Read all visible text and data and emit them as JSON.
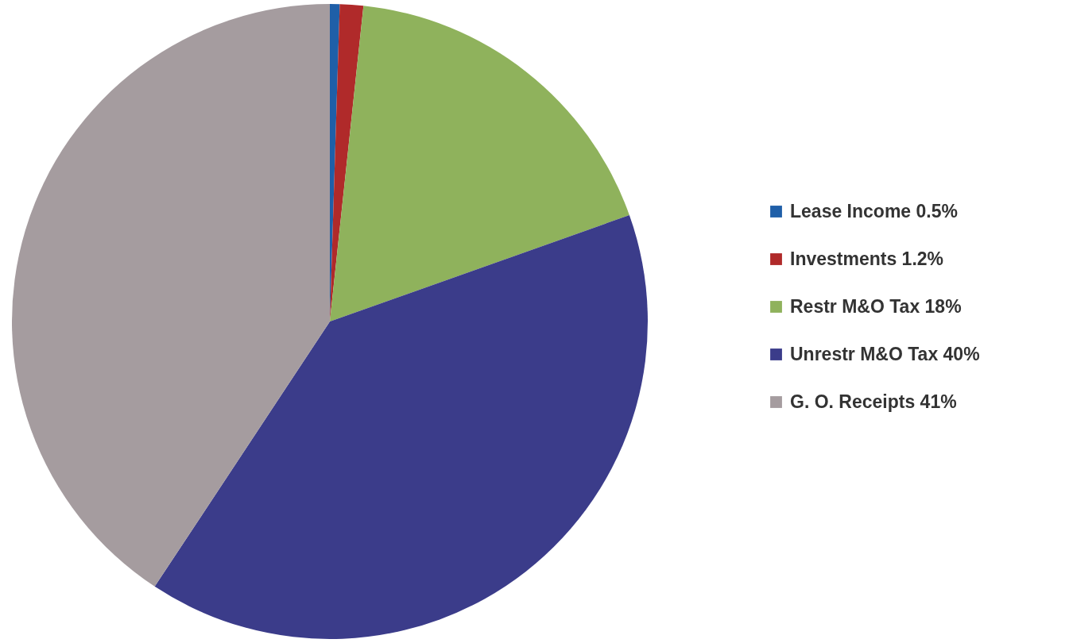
{
  "chart_data": {
    "type": "pie",
    "categories": [
      "Lease Income 0.5%",
      "Investments 1.2%",
      "Restr M&O Tax 18%",
      "Unrestr M&O Tax 40%",
      "G. O. Receipts 41%"
    ],
    "values": [
      0.5,
      1.2,
      18,
      40,
      41
    ],
    "colors": [
      "#1f5fa8",
      "#b02a2a",
      "#8fb25c",
      "#3b3c8a",
      "#a59c9f"
    ],
    "legend": "right"
  }
}
